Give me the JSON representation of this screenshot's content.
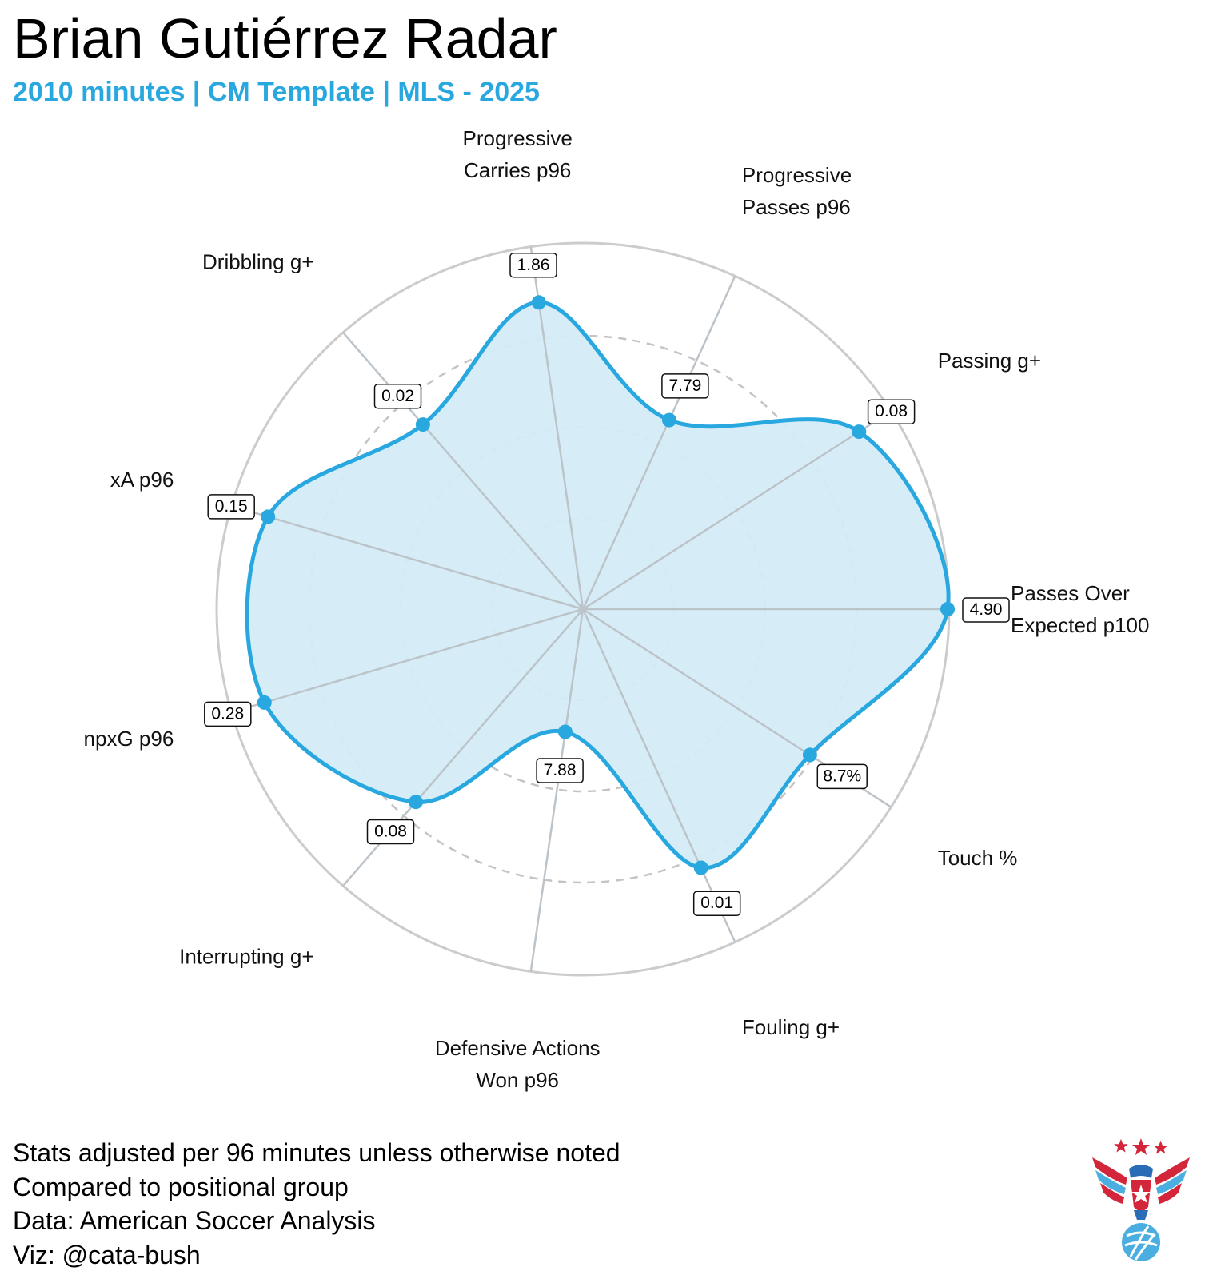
{
  "header": {
    "title": "Brian Gutiérrez Radar",
    "subtitle": "2010 minutes | CM Template | MLS - 2025"
  },
  "footer": {
    "lines": [
      "Stats adjusted per 96 minutes unless otherwise noted",
      "Compared to positional group",
      "Data: American Soccer Analysis",
      "Viz: @cata-bush"
    ]
  },
  "colors": {
    "accent": "#29a8e0",
    "fill": "#d4ecf8",
    "grid": "#cccccc",
    "spoke": "#bcc3c9"
  },
  "logo": {
    "icon": "eagle-soccer-ball-logo-icon"
  },
  "chart_data": {
    "type": "radar",
    "title": "Brian Gutiérrez Radar",
    "subtitle": "2010 minutes | CM Template | MLS - 2025",
    "scale": "percentile",
    "rmax": 100,
    "rings": [
      25,
      50,
      75,
      100
    ],
    "grid": true,
    "axes": [
      {
        "label_lines": [
          "Passes Over",
          "Expected p100"
        ],
        "value_label": "4.90",
        "percentile": 100
      },
      {
        "label_lines": [
          "Passing g+"
        ],
        "value_label": "0.08",
        "percentile": 90
      },
      {
        "label_lines": [
          "Progressive",
          "Passes p96"
        ],
        "value_label": "7.79",
        "percentile": 57
      },
      {
        "label_lines": [
          "Progressive",
          "Carries p96"
        ],
        "value_label": "1.86",
        "percentile": 85
      },
      {
        "label_lines": [
          "Dribbling g+"
        ],
        "value_label": "0.02",
        "percentile": 67
      },
      {
        "label_lines": [
          "xA p96"
        ],
        "value_label": "0.15",
        "percentile": 90
      },
      {
        "label_lines": [
          "npxG p96"
        ],
        "value_label": "0.28",
        "percentile": 91
      },
      {
        "label_lines": [
          "Interrupting g+"
        ],
        "value_label": "0.08",
        "percentile": 70
      },
      {
        "label_lines": [
          "Defensive Actions",
          "Won p96"
        ],
        "value_label": "7.88",
        "percentile": 34
      },
      {
        "label_lines": [
          "Fouling g+"
        ],
        "value_label": "0.01",
        "percentile": 78
      },
      {
        "label_lines": [
          "Touch %"
        ],
        "value_label": "8.7%",
        "percentile": 74
      }
    ]
  }
}
